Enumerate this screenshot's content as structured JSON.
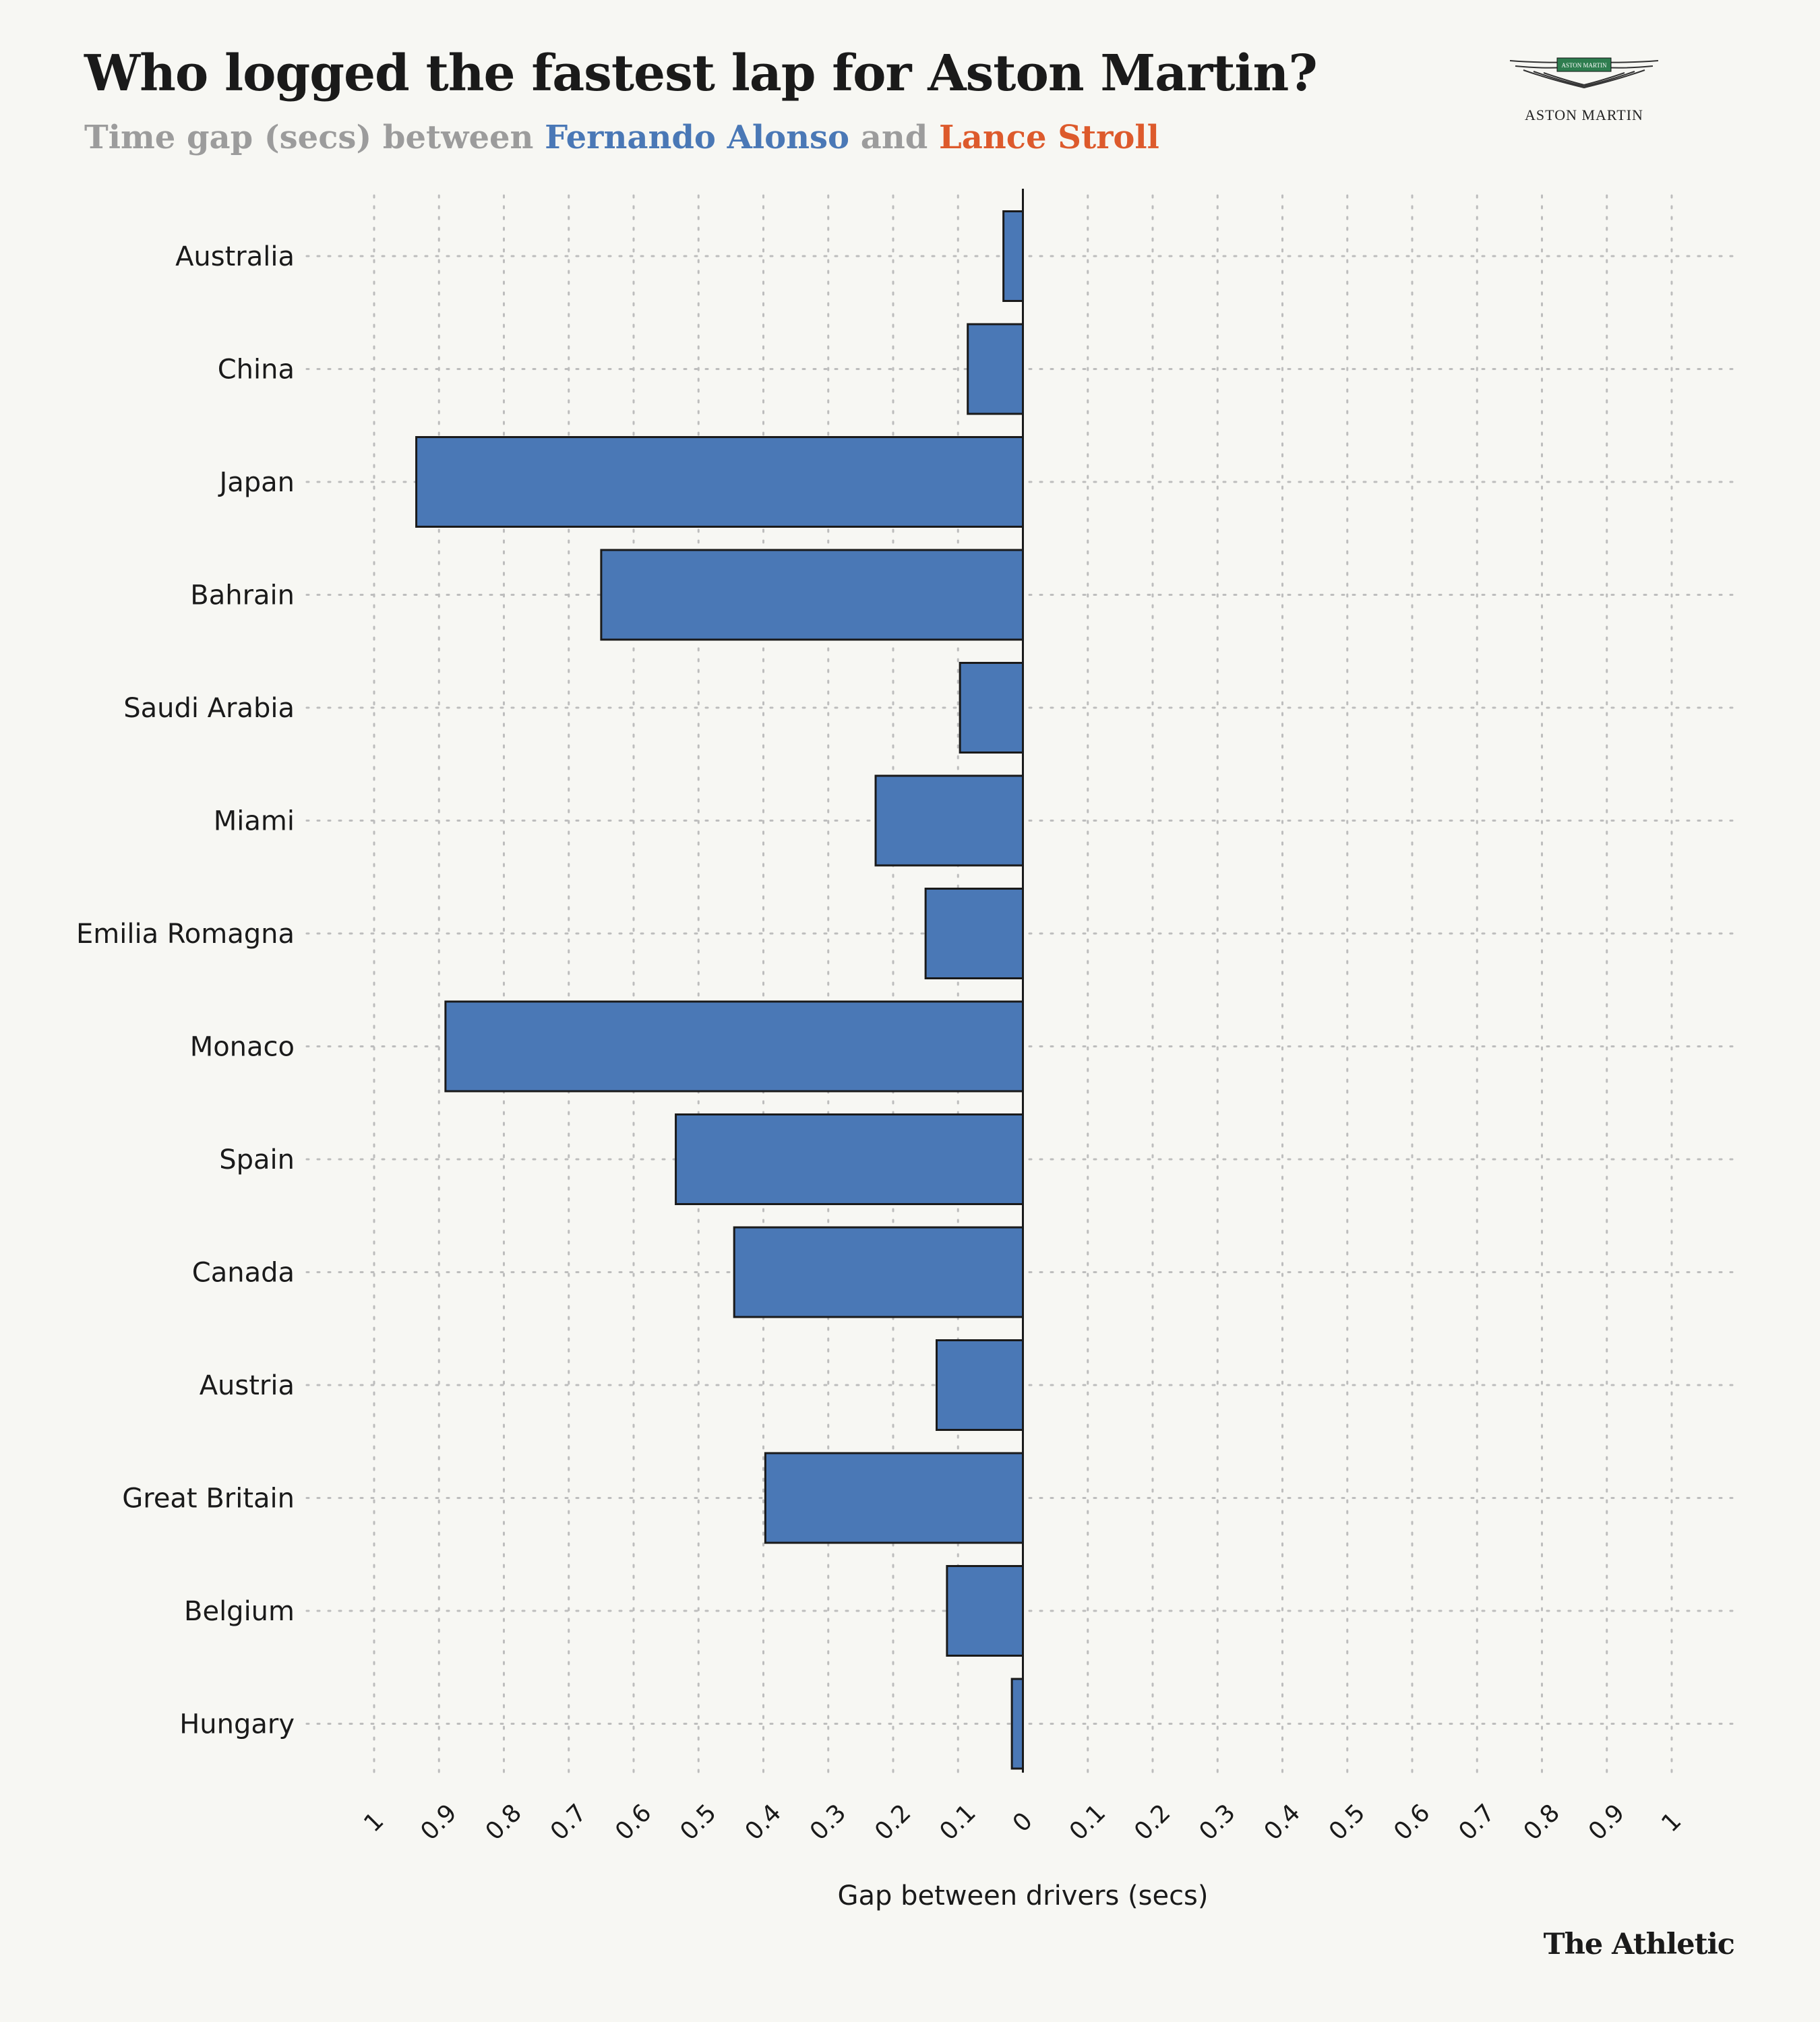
{
  "header": {
    "title": "Who logged the fastest lap for Aston Martin?",
    "subtitle_prefix": "Time gap (secs) between ",
    "driver_a": "Fernando Alonso",
    "subtitle_mid": " and ",
    "driver_b": "Lance Stroll",
    "logo_text": "ASTON MARTIN",
    "logo_badge": "ASTON MARTIN",
    "source_brand": "The Athletic"
  },
  "colors": {
    "background": "#f7f7f3",
    "alonso": "#4a78b6",
    "stroll": "#dd5a2c",
    "grid": "#bdbdbd",
    "text": "#1a1a1a",
    "logo_badge": "#2e7d4f"
  },
  "chart_data": {
    "type": "bar",
    "orientation": "horizontal",
    "xlabel": "Gap between drivers (secs)",
    "xlim": [
      -1,
      1
    ],
    "x_ticks": [
      -1,
      -0.9,
      -0.8,
      -0.7,
      -0.6,
      -0.5,
      -0.4,
      -0.3,
      -0.2,
      -0.1,
      0,
      0.1,
      0.2,
      0.3,
      0.4,
      0.5,
      0.6,
      0.7,
      0.8,
      0.9,
      1
    ],
    "x_tick_labels": [
      "1",
      "0.9",
      "0.8",
      "0.7",
      "0.6",
      "0.5",
      "0.4",
      "0.3",
      "0.2",
      "0.1",
      "0",
      "0.1",
      "0.2",
      "0.3",
      "0.4",
      "0.5",
      "0.6",
      "0.7",
      "0.8",
      "0.9",
      "1"
    ],
    "grid": true,
    "categories": [
      "Australia",
      "China",
      "Japan",
      "Bahrain",
      "Saudi Arabia",
      "Miami",
      "Emilia Romagna",
      "Monaco",
      "Spain",
      "Canada",
      "Austria",
      "Great Britain",
      "Belgium",
      "Hungary"
    ],
    "values": [
      -0.03,
      -0.085,
      -0.935,
      -0.65,
      -0.097,
      -0.227,
      -0.15,
      -0.89,
      -0.535,
      -0.445,
      -0.133,
      -0.397,
      -0.117,
      -0.017
    ]
  }
}
